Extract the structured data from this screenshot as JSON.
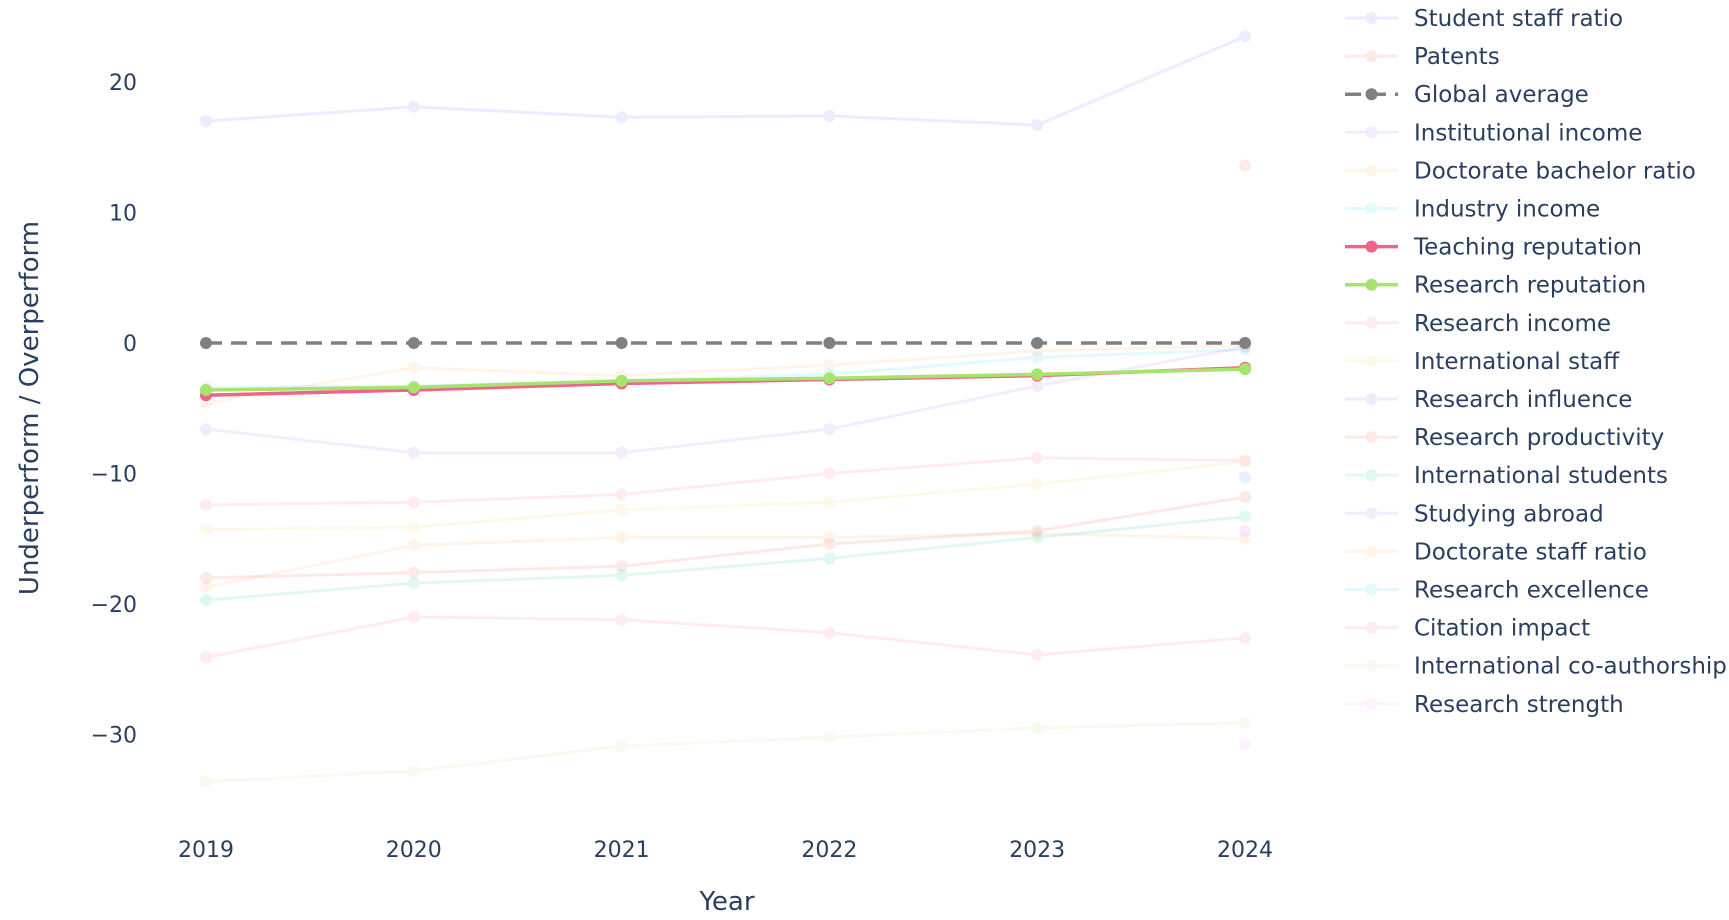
{
  "chart_data": {
    "type": "line",
    "xlabel": "Year",
    "ylabel": "Underperform / Overperform",
    "x": [
      "2019",
      "2020",
      "2021",
      "2022",
      "2023",
      "2024"
    ],
    "yticks": [
      20,
      10,
      0,
      -10,
      -20,
      -30
    ],
    "ytick_labels": [
      "20",
      "10",
      "0",
      "−10",
      "−20",
      "−30"
    ],
    "ylim": [
      -36.5,
      25
    ],
    "grid": false,
    "legend_position": "right",
    "series": [
      {
        "name": "Student staff ratio",
        "color": "#636efa",
        "values": [
          17.0,
          18.1,
          17.3,
          17.4,
          16.7,
          23.5
        ]
      },
      {
        "name": "Patents",
        "color": "#ef553b",
        "values": [
          null,
          null,
          null,
          null,
          null,
          13.6
        ]
      },
      {
        "name": "Global average",
        "color": "#808080",
        "dashed": true,
        "highlight": true,
        "values": [
          0,
          0,
          0,
          0,
          0,
          0
        ]
      },
      {
        "name": "Institutional income",
        "color": "#ab63fa",
        "values": [
          -6.6,
          -8.4,
          -8.4,
          -6.6,
          -3.3,
          -0.3
        ]
      },
      {
        "name": "Doctorate bachelor ratio",
        "color": "#ffa15a",
        "values": [
          -4.6,
          -1.9,
          -2.5,
          -1.7,
          -0.6,
          -0.2
        ]
      },
      {
        "name": "Industry income",
        "color": "#19d3f3",
        "values": [
          -3.4,
          -3.3,
          -2.9,
          -2.4,
          -1.1,
          -0.5
        ]
      },
      {
        "name": "Teaching reputation",
        "color": "#f0648a",
        "highlight": true,
        "values": [
          -4.0,
          -3.6,
          -3.1,
          -2.8,
          -2.5,
          -1.9
        ]
      },
      {
        "name": "Research reputation",
        "color": "#a6e46e",
        "highlight": true,
        "values": [
          -3.6,
          -3.4,
          -2.9,
          -2.7,
          -2.4,
          -2.0
        ]
      },
      {
        "name": "Research income",
        "color": "#ff6692",
        "values": [
          -12.4,
          -12.2,
          -11.6,
          -10.0,
          -8.8,
          -9.0
        ]
      },
      {
        "name": "International staff",
        "color": "#fecb52",
        "values": [
          -14.3,
          -14.1,
          -12.8,
          -12.2,
          -10.8,
          -9.1
        ]
      },
      {
        "name": "Research influence",
        "color": "#636efa",
        "values": [
          null,
          null,
          null,
          null,
          null,
          -10.3
        ]
      },
      {
        "name": "Research productivity",
        "color": "#ef553b",
        "values": [
          -18.0,
          -17.6,
          -17.1,
          -15.4,
          -14.4,
          -11.8
        ]
      },
      {
        "name": "International students",
        "color": "#00cc96",
        "values": [
          -19.7,
          -18.4,
          -17.8,
          -16.5,
          -14.9,
          -13.3
        ]
      },
      {
        "name": "Studying abroad",
        "color": "#ab63fa",
        "values": [
          null,
          null,
          null,
          null,
          null,
          -14.4
        ]
      },
      {
        "name": "Doctorate staff ratio",
        "color": "#ffa15a",
        "values": [
          -18.7,
          -15.5,
          -14.9,
          -14.9,
          -14.6,
          -15.0
        ]
      },
      {
        "name": "Research excellence",
        "color": "#19d3f3",
        "values": [
          null,
          null,
          null,
          null,
          null,
          null
        ]
      },
      {
        "name": "Citation impact",
        "color": "#ff6692",
        "values": [
          -24.1,
          -21.0,
          -21.2,
          -22.2,
          -23.9,
          -22.6
        ]
      },
      {
        "name": "International co-authorship",
        "color": "#b6e880",
        "values": [
          -33.6,
          -32.8,
          -30.9,
          -30.2,
          -29.5,
          -29.1
        ]
      },
      {
        "name": "Research strength",
        "color": "#ff97ff",
        "values": [
          null,
          null,
          null,
          null,
          null,
          -30.8
        ]
      }
    ]
  }
}
